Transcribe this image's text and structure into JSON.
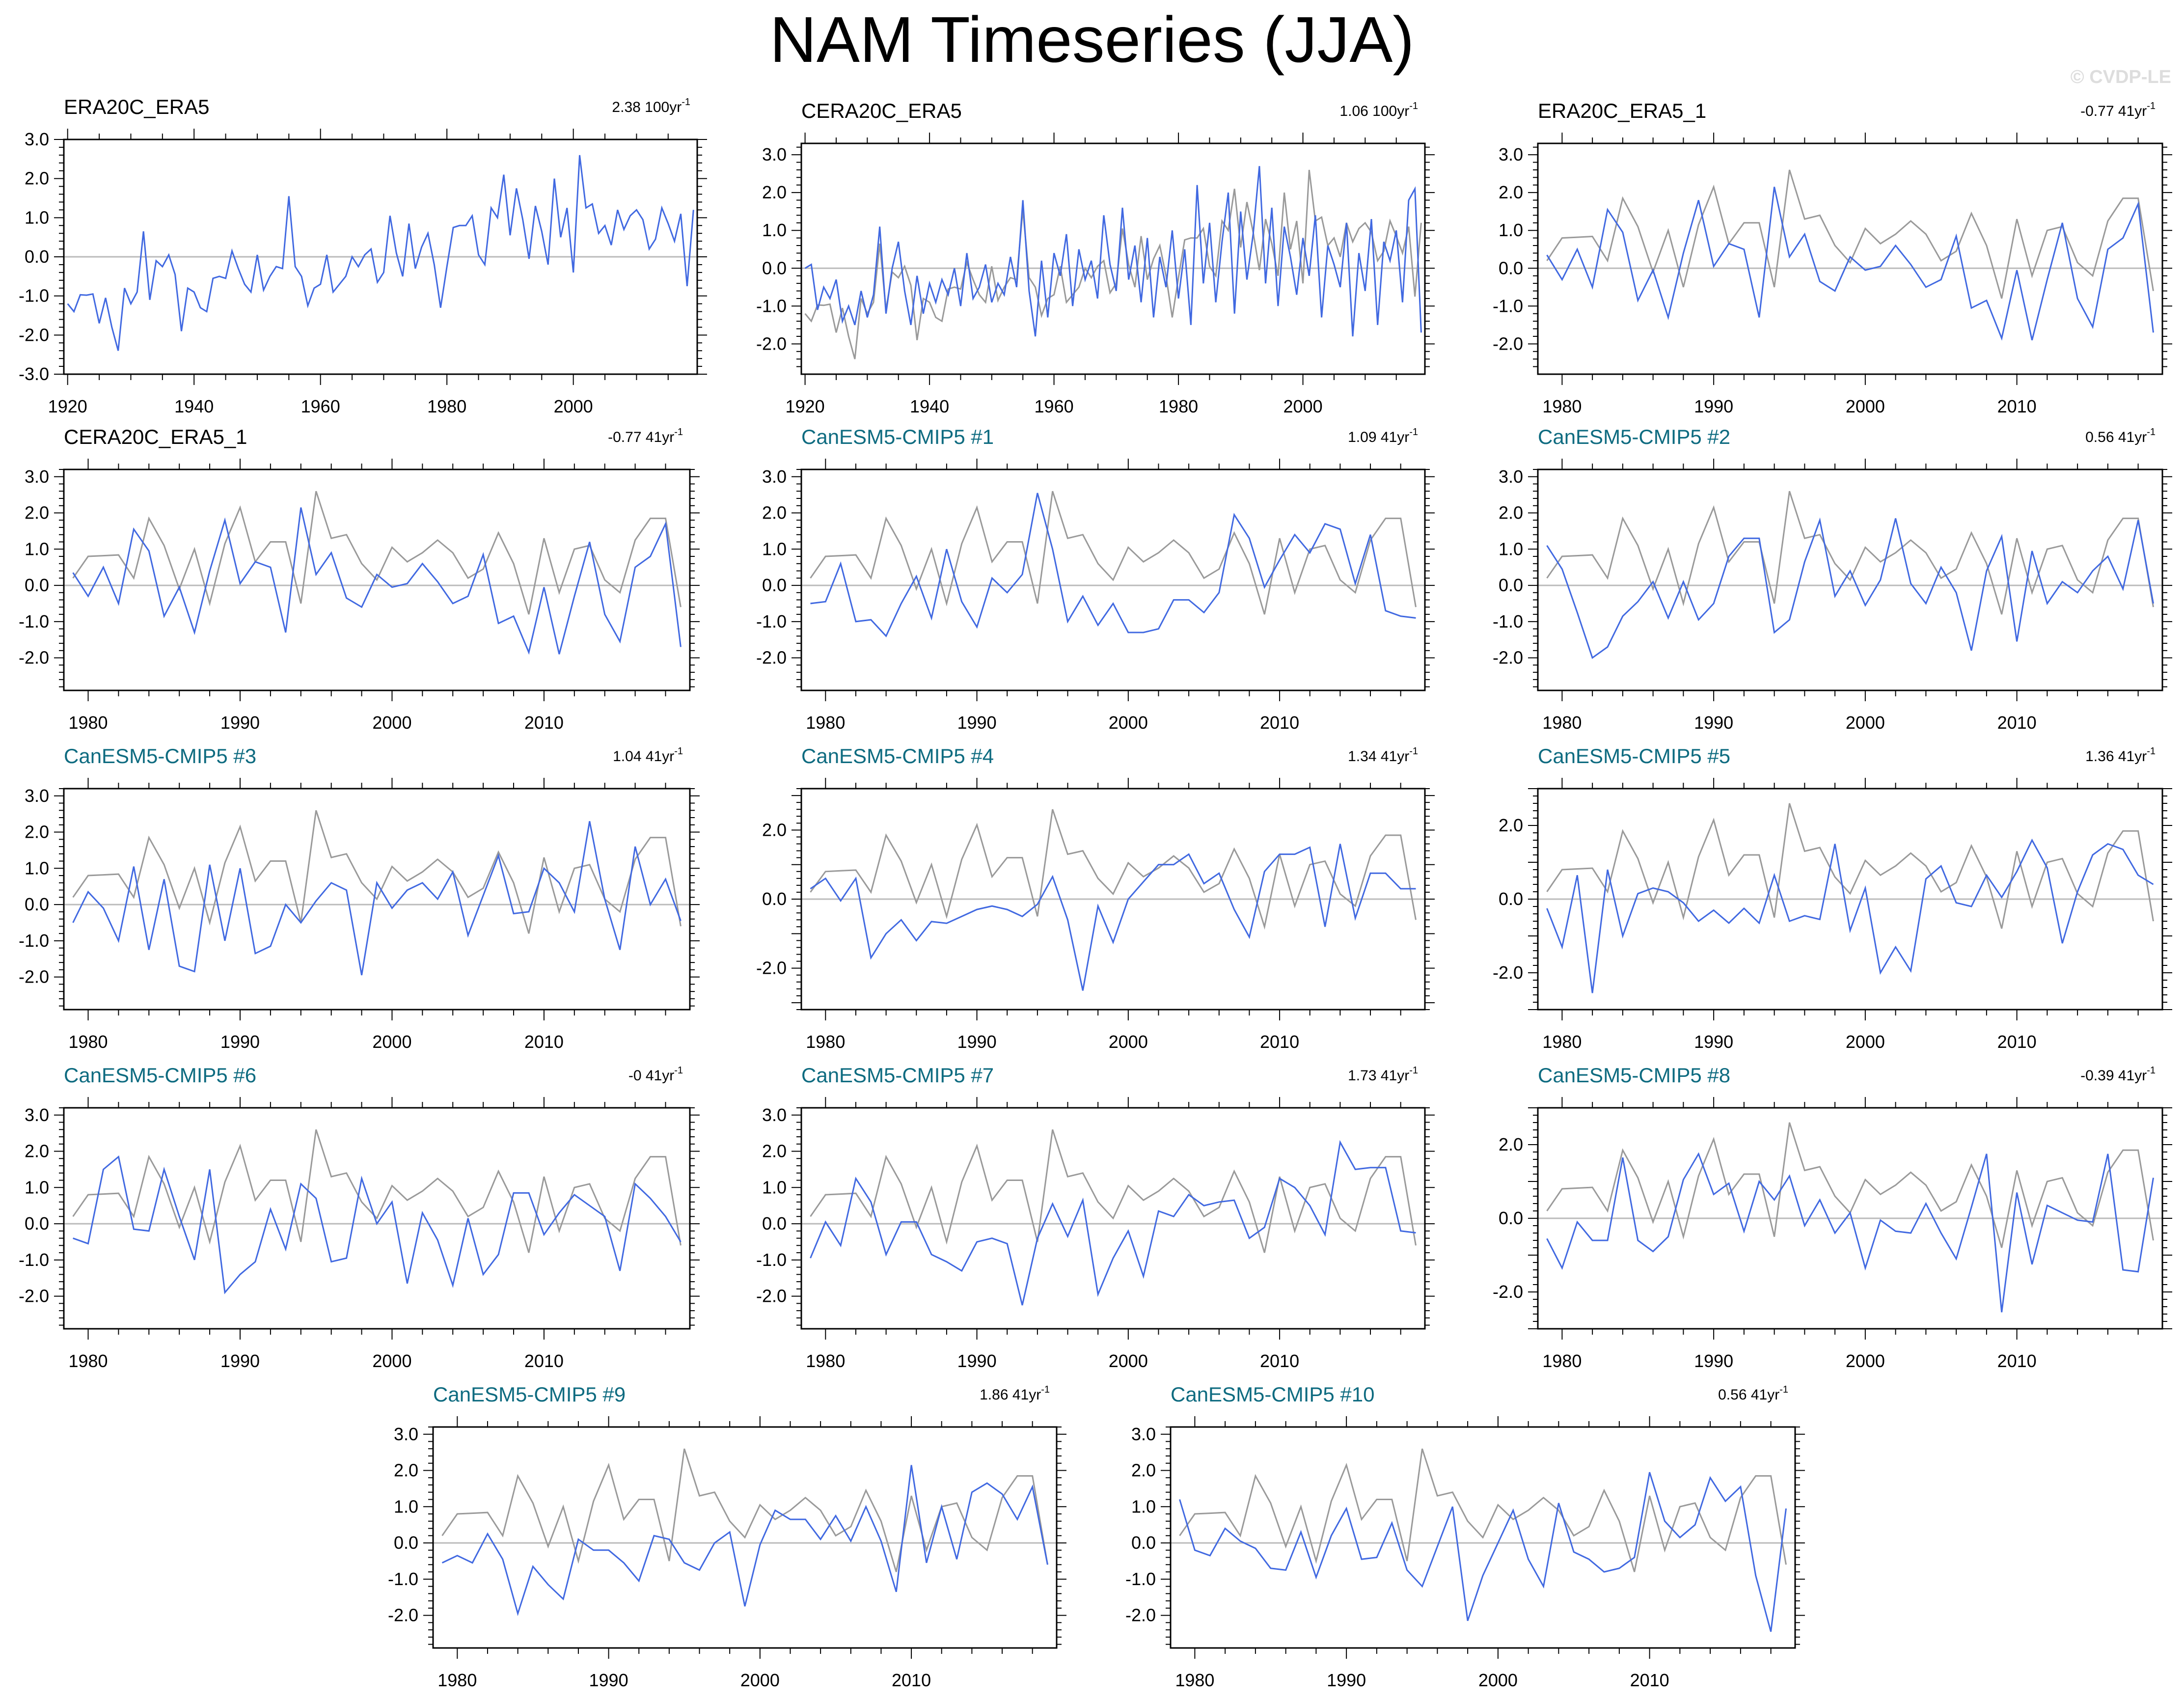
{
  "page": {
    "title": "NAM Timeseries (JJA)",
    "watermark": "© CVDP-LE"
  },
  "colors": {
    "series": "#4169e1",
    "observed": "#9a9a9a",
    "title_obs": "#000000",
    "title_model": "#0e6b80",
    "axes": "#000000",
    "zero_line": "#bbbbbb"
  },
  "chart_data": [
    {
      "id": "era20c_era5",
      "type": "line",
      "title": "ERA20C_ERA5",
      "title_kind": "obs",
      "trend": "2.38 100yr",
      "trend_sup": "-1",
      "x_start": 1920,
      "x_end": 2019,
      "xticks": [
        1920,
        1940,
        1960,
        1980,
        2000
      ],
      "ylim": [
        -3,
        3
      ],
      "yticks": [
        "3.0",
        "2.0",
        "1.0",
        "0.0",
        "-1.0",
        "-2.0",
        "-3.0"
      ],
      "show_obs": false,
      "values": [
        -1.2,
        -1.4,
        -0.97,
        -0.98,
        -0.95,
        -1.7,
        -1.05,
        -1.8,
        -2.4,
        -0.8,
        -1.2,
        -0.9,
        0.65,
        -1.1,
        -0.1,
        -0.25,
        0.05,
        -0.45,
        -1.9,
        -0.8,
        -0.9,
        -1.3,
        -1.4,
        -0.55,
        -0.5,
        -0.55,
        0.15,
        -0.3,
        -0.7,
        -0.9,
        0.05,
        -0.85,
        -0.5,
        -0.25,
        -0.3,
        1.55,
        -0.25,
        -0.5,
        -1.25,
        -0.8,
        -0.7,
        0.05,
        -0.9,
        -0.7,
        -0.5,
        0.0,
        -0.25,
        0.05,
        0.2,
        -0.65,
        -0.4,
        1.05,
        0.1,
        -0.5,
        0.85,
        -0.3,
        0.25,
        0.6,
        -0.2,
        -1.3,
        -0.25,
        0.75,
        0.8,
        0.8,
        1.05,
        0.05,
        -0.2,
        1.25,
        1.0,
        2.1,
        0.55,
        1.75,
        0.95,
        -0.05,
        1.3,
        0.65,
        -0.2,
        2.0,
        0.5,
        1.25,
        -0.4,
        2.6,
        1.25,
        1.35,
        0.6,
        0.8,
        0.3,
        1.2,
        0.7,
        1.05,
        1.2,
        0.95,
        0.2,
        0.45,
        1.25,
        0.85,
        0.4,
        1.1,
        -0.75,
        1.2
      ]
    },
    {
      "id": "cera20c_era5",
      "type": "line",
      "title": "CERA20C_ERA5",
      "title_kind": "obs",
      "trend": "1.06 100yr",
      "trend_sup": "-1",
      "x_start": 1920,
      "x_end": 2019,
      "xticks": [
        1920,
        1940,
        1960,
        1980,
        2000
      ],
      "ylim": [
        -2.8,
        3.3
      ],
      "yticks": [
        "3.0",
        "2.0",
        "1.0",
        "0.0",
        "-1.0",
        "-2.0"
      ],
      "show_obs": true,
      "obs_values": [
        -1.2,
        -1.4,
        -0.97,
        -0.98,
        -0.95,
        -1.7,
        -1.05,
        -1.8,
        -2.4,
        -0.8,
        -1.2,
        -0.9,
        0.65,
        -1.1,
        -0.1,
        -0.25,
        0.05,
        -0.45,
        -1.9,
        -0.8,
        -0.9,
        -1.3,
        -1.4,
        -0.55,
        -0.5,
        -0.55,
        0.15,
        -0.3,
        -0.7,
        -0.9,
        0.05,
        -0.85,
        -0.5,
        -0.25,
        -0.3,
        1.55,
        -0.25,
        -0.5,
        -1.25,
        -0.8,
        -0.7,
        0.05,
        -0.9,
        -0.7,
        -0.5,
        0.0,
        -0.25,
        0.05,
        0.2,
        -0.65,
        -0.4,
        1.05,
        0.1,
        -0.5,
        0.85,
        -0.3,
        0.25,
        0.6,
        -0.2,
        -1.3,
        -0.25,
        0.75,
        0.8,
        0.8,
        1.05,
        0.05,
        -0.2,
        1.25,
        1.0,
        2.1,
        0.55,
        1.75,
        0.95,
        -0.05,
        1.3,
        0.65,
        -0.2,
        2.0,
        0.5,
        1.25,
        -0.4,
        2.6,
        1.25,
        1.35,
        0.6,
        0.8,
        0.3,
        1.2,
        0.7,
        1.05,
        1.2,
        0.95,
        0.2,
        0.45,
        1.25,
        0.85,
        0.4,
        1.1,
        -0.75,
        1.2
      ],
      "values": [
        0.0,
        0.1,
        -1.1,
        -0.5,
        -0.8,
        -0.3,
        -1.4,
        -1.0,
        -1.5,
        -0.6,
        -1.3,
        -0.7,
        1.1,
        -1.2,
        0.0,
        0.7,
        -0.6,
        -1.5,
        -0.2,
        -1.2,
        -0.4,
        -0.9,
        -0.3,
        -0.7,
        0.0,
        -1.0,
        0.4,
        -0.8,
        -0.5,
        0.1,
        -0.9,
        -0.4,
        -0.7,
        0.3,
        -0.5,
        1.8,
        -0.6,
        -1.8,
        0.2,
        -1.3,
        0.4,
        -0.2,
        0.9,
        -1.0,
        0.5,
        -0.3,
        0.2,
        -0.8,
        1.4,
        0.1,
        -0.6,
        1.6,
        -0.3,
        0.6,
        -0.9,
        0.8,
        -1.3,
        0.3,
        -0.5,
        1.0,
        -0.8,
        0.5,
        -1.5,
        2.2,
        -0.4,
        1.2,
        -0.9,
        0.7,
        2.0,
        -1.2,
        1.5,
        -0.3,
        0.9,
        2.7,
        -0.4,
        1.6,
        -1.0,
        1.1,
        0.3,
        -0.7,
        0.8,
        -0.2,
        1.4,
        -1.3,
        0.6,
        0.1,
        -0.5,
        1.2,
        -1.8,
        0.4,
        -0.6,
        1.3,
        -1.5,
        0.7,
        0.2,
        1.0,
        -0.9,
        1.8,
        2.1,
        -1.7
      ]
    },
    {
      "id": "era20c_era5_1",
      "type": "line",
      "title": "ERA20C_ERA5_1",
      "title_kind": "obs",
      "trend": "-0.77 41yr",
      "trend_sup": "-1",
      "x_start": 1979,
      "x_end": 2019,
      "xticks": [
        1980,
        1990,
        2000,
        2010
      ],
      "ylim": [
        -2.8,
        3.3
      ],
      "yticks": [
        "3.0",
        "2.0",
        "1.0",
        "0.0",
        "-1.0",
        "-2.0"
      ],
      "show_obs": true,
      "values": [
        0.35,
        -0.3,
        0.5,
        -0.5,
        1.55,
        0.95,
        -0.85,
        -0.05,
        -1.3,
        0.4,
        1.8,
        0.05,
        0.65,
        0.5,
        -1.3,
        2.15,
        0.3,
        0.9,
        -0.35,
        -0.6,
        0.3,
        -0.05,
        0.05,
        0.6,
        0.1,
        -0.5,
        -0.3,
        0.85,
        -1.05,
        -0.85,
        -1.85,
        -0.05,
        -1.9,
        -0.3,
        1.2,
        -0.8,
        -1.55,
        0.5,
        0.8,
        1.7,
        -1.7
      ]
    },
    {
      "id": "cera20c_era5_1",
      "type": "line",
      "title": "CERA20C_ERA5_1",
      "title_kind": "obs",
      "trend": "-0.77 41yr",
      "trend_sup": "-1",
      "x_start": 1979,
      "x_end": 2019,
      "xticks": [
        1980,
        1990,
        2000,
        2010
      ],
      "ylim": [
        -2.9,
        3.2
      ],
      "yticks": [
        "3.0",
        "2.0",
        "1.0",
        "0.0",
        "-1.0",
        "-2.0"
      ],
      "show_obs": true,
      "values": [
        0.35,
        -0.3,
        0.5,
        -0.5,
        1.55,
        0.95,
        -0.85,
        -0.05,
        -1.3,
        0.4,
        1.8,
        0.05,
        0.65,
        0.5,
        -1.3,
        2.15,
        0.3,
        0.9,
        -0.35,
        -0.6,
        0.3,
        -0.05,
        0.05,
        0.6,
        0.1,
        -0.5,
        -0.3,
        0.85,
        -1.05,
        -0.85,
        -1.85,
        -0.05,
        -1.9,
        -0.3,
        1.2,
        -0.8,
        -1.55,
        0.5,
        0.8,
        1.7,
        -1.7
      ]
    },
    {
      "id": "member_1",
      "type": "line",
      "title": "CanESM5-CMIP5 #1",
      "title_kind": "model",
      "trend": "1.09 41yr",
      "trend_sup": "-1",
      "x_start": 1979,
      "x_end": 2019,
      "xticks": [
        1980,
        1990,
        2000,
        2010
      ],
      "ylim": [
        -2.9,
        3.2
      ],
      "yticks": [
        "3.0",
        "2.0",
        "1.0",
        "0.0",
        "-1.0",
        "-2.0"
      ],
      "show_obs": true,
      "values": [
        -0.5,
        -0.45,
        0.6,
        -1.0,
        -0.95,
        -1.4,
        -0.5,
        0.25,
        -0.9,
        1.0,
        -0.45,
        -1.15,
        0.2,
        -0.2,
        0.3,
        2.55,
        1.0,
        -1.0,
        -0.3,
        -1.1,
        -0.5,
        -1.3,
        -1.3,
        -1.2,
        -0.4,
        -0.4,
        -0.75,
        -0.2,
        1.95,
        1.3,
        -0.05,
        0.7,
        1.4,
        0.9,
        1.7,
        1.55,
        0.05,
        1.4,
        -0.7,
        -0.85,
        -0.9
      ]
    },
    {
      "id": "member_2",
      "type": "line",
      "title": "CanESM5-CMIP5 #2",
      "title_kind": "model",
      "trend": "0.56 41yr",
      "trend_sup": "-1",
      "x_start": 1979,
      "x_end": 2019,
      "xticks": [
        1980,
        1990,
        2000,
        2010
      ],
      "ylim": [
        -2.9,
        3.2
      ],
      "yticks": [
        "3.0",
        "2.0",
        "1.0",
        "0.0",
        "-1.0",
        "-2.0"
      ],
      "show_obs": true,
      "values": [
        1.1,
        0.45,
        -0.75,
        -2.0,
        -1.7,
        -0.85,
        -0.45,
        0.1,
        -0.9,
        0.1,
        -0.95,
        -0.5,
        0.8,
        1.3,
        1.3,
        -1.3,
        -0.95,
        0.65,
        1.8,
        -0.3,
        0.4,
        -0.55,
        0.15,
        1.85,
        0.05,
        -0.5,
        0.5,
        -0.2,
        -1.8,
        0.4,
        1.35,
        -1.55,
        0.95,
        -0.5,
        0.1,
        -0.2,
        0.4,
        0.8,
        -0.1,
        1.8,
        -0.5
      ]
    },
    {
      "id": "member_3",
      "type": "line",
      "title": "CanESM5-CMIP5 #3",
      "title_kind": "model",
      "trend": "1.04 41yr",
      "trend_sup": "-1",
      "x_start": 1979,
      "x_end": 2019,
      "xticks": [
        1980,
        1990,
        2000,
        2010
      ],
      "ylim": [
        -2.9,
        3.2
      ],
      "yticks": [
        "3.0",
        "2.0",
        "1.0",
        "0.0",
        "-1.0",
        "-2.0"
      ],
      "show_obs": true,
      "values": [
        -0.5,
        0.35,
        -0.1,
        -1.0,
        1.05,
        -1.25,
        0.7,
        -1.7,
        -1.85,
        1.1,
        -1.0,
        1.0,
        -1.35,
        -1.15,
        0.0,
        -0.5,
        0.1,
        0.6,
        0.4,
        -1.95,
        0.6,
        -0.1,
        0.4,
        0.6,
        0.15,
        0.9,
        -0.85,
        0.25,
        1.35,
        -0.25,
        -0.2,
        1.0,
        0.6,
        -0.2,
        2.3,
        0.15,
        -1.25,
        1.6,
        0.0,
        0.7,
        -0.45
      ]
    },
    {
      "id": "member_4",
      "type": "line",
      "title": "CanESM5-CMIP5 #4",
      "title_kind": "model",
      "trend": "1.34 41yr",
      "trend_sup": "-1",
      "x_start": 1979,
      "x_end": 2019,
      "xticks": [
        1980,
        1990,
        2000,
        2010
      ],
      "ylim": [
        -3.2,
        3.2
      ],
      "yticks": [
        "2.0",
        "0.0",
        "-2.0"
      ],
      "show_obs": true,
      "values": [
        0.3,
        0.6,
        -0.05,
        0.6,
        -1.7,
        -1.0,
        -0.6,
        -1.2,
        -0.65,
        -0.7,
        -0.5,
        -0.3,
        -0.2,
        -0.3,
        -0.5,
        -0.15,
        0.65,
        -0.6,
        -2.65,
        -0.2,
        -1.25,
        0.0,
        0.5,
        1.0,
        1.0,
        1.3,
        0.45,
        0.75,
        -0.3,
        -1.1,
        0.8,
        1.3,
        1.3,
        1.5,
        -0.8,
        1.6,
        -0.55,
        0.75,
        0.75,
        0.3,
        0.3
      ]
    },
    {
      "id": "member_5",
      "type": "line",
      "title": "CanESM5-CMIP5 #5",
      "title_kind": "model",
      "trend": "1.36 41yr",
      "trend_sup": "-1",
      "x_start": 1979,
      "x_end": 2019,
      "xticks": [
        1980,
        1990,
        2000,
        2010
      ],
      "ylim": [
        -3.0,
        3.0
      ],
      "yticks": [
        "2.0",
        "0.0",
        "-2.0"
      ],
      "show_obs": true,
      "values": [
        -0.25,
        -1.3,
        0.65,
        -2.55,
        0.8,
        -1.0,
        0.15,
        0.3,
        0.2,
        -0.1,
        -0.6,
        -0.3,
        -0.65,
        -0.25,
        -0.65,
        0.65,
        -0.6,
        -0.45,
        -0.55,
        1.5,
        -0.85,
        0.3,
        -2.0,
        -1.3,
        -1.95,
        0.55,
        0.9,
        -0.1,
        -0.2,
        0.65,
        0.05,
        0.75,
        1.6,
        0.85,
        -1.2,
        0.2,
        1.2,
        1.5,
        1.35,
        0.65,
        0.4
      ]
    },
    {
      "id": "member_6",
      "type": "line",
      "title": "CanESM5-CMIP5 #6",
      "title_kind": "model",
      "trend": "-0 41yr",
      "trend_sup": "-1",
      "x_start": 1979,
      "x_end": 2019,
      "xticks": [
        1980,
        1990,
        2000,
        2010
      ],
      "ylim": [
        -2.9,
        3.2
      ],
      "yticks": [
        "3.0",
        "2.0",
        "1.0",
        "0.0",
        "-1.0",
        "-2.0"
      ],
      "show_obs": true,
      "values": [
        -0.4,
        -0.55,
        1.5,
        1.85,
        -0.15,
        -0.2,
        1.5,
        0.2,
        -1.0,
        1.5,
        -1.9,
        -1.4,
        -1.05,
        0.4,
        -0.7,
        1.1,
        0.7,
        -1.05,
        -0.95,
        1.25,
        0.0,
        0.6,
        -1.65,
        0.3,
        -0.45,
        -1.7,
        0.15,
        -1.4,
        -0.85,
        0.85,
        0.85,
        -0.3,
        0.3,
        0.8,
        0.5,
        0.2,
        -1.3,
        1.1,
        0.7,
        0.2,
        -0.5
      ]
    },
    {
      "id": "member_7",
      "type": "line",
      "title": "CanESM5-CMIP5 #7",
      "title_kind": "model",
      "trend": "1.73 41yr",
      "trend_sup": "-1",
      "x_start": 1979,
      "x_end": 2019,
      "xticks": [
        1980,
        1990,
        2000,
        2010
      ],
      "ylim": [
        -2.9,
        3.2
      ],
      "yticks": [
        "3.0",
        "2.0",
        "1.0",
        "0.0",
        "-1.0",
        "-2.0"
      ],
      "show_obs": true,
      "values": [
        -0.95,
        0.05,
        -0.6,
        1.25,
        0.6,
        -0.85,
        0.05,
        0.05,
        -0.85,
        -1.05,
        -1.3,
        -0.5,
        -0.4,
        -0.55,
        -2.25,
        -0.4,
        0.55,
        -0.35,
        0.65,
        -1.95,
        -0.95,
        -0.2,
        -1.45,
        0.35,
        0.2,
        0.8,
        0.5,
        0.6,
        0.65,
        -0.4,
        -0.1,
        1.25,
        1.0,
        0.5,
        -0.3,
        2.25,
        1.5,
        1.55,
        1.55,
        -0.2,
        -0.25
      ]
    },
    {
      "id": "member_8",
      "type": "line",
      "title": "CanESM5-CMIP5 #8",
      "title_kind": "model",
      "trend": "-0.39 41yr",
      "trend_sup": "-1",
      "x_start": 1979,
      "x_end": 2019,
      "xticks": [
        1980,
        1990,
        2000,
        2010
      ],
      "ylim": [
        -3.0,
        3.0
      ],
      "yticks": [
        "2.0",
        "0.0",
        "-2.0"
      ],
      "show_obs": true,
      "values": [
        -0.55,
        -1.35,
        -0.1,
        -0.6,
        -0.6,
        1.65,
        -0.6,
        -0.9,
        -0.5,
        1.05,
        1.75,
        0.65,
        0.95,
        -0.35,
        1.0,
        0.5,
        1.15,
        -0.2,
        0.5,
        -0.4,
        0.15,
        -1.35,
        -0.05,
        -0.35,
        -0.4,
        0.4,
        -0.4,
        -1.1,
        0.3,
        1.75,
        -2.55,
        0.7,
        -1.25,
        0.35,
        0.15,
        -0.05,
        -0.1,
        1.75,
        -1.4,
        -1.45,
        1.1
      ]
    },
    {
      "id": "member_9",
      "type": "line",
      "title": "CanESM5-CMIP5 #9",
      "title_kind": "model",
      "trend": "1.86 41yr",
      "trend_sup": "-1",
      "x_start": 1979,
      "x_end": 2019,
      "xticks": [
        1980,
        1990,
        2000,
        2010
      ],
      "ylim": [
        -2.9,
        3.2
      ],
      "yticks": [
        "3.0",
        "2.0",
        "1.0",
        "0.0",
        "-1.0",
        "-2.0"
      ],
      "show_obs": true,
      "values": [
        -0.55,
        -0.35,
        -0.55,
        0.25,
        -0.45,
        -1.95,
        -0.65,
        -1.15,
        -1.55,
        0.1,
        -0.2,
        -0.2,
        -0.55,
        -1.05,
        0.2,
        0.1,
        -0.55,
        -0.75,
        0.0,
        0.3,
        -1.75,
        -0.05,
        0.9,
        0.65,
        0.65,
        0.1,
        0.75,
        0.05,
        1.0,
        0.05,
        -1.35,
        2.15,
        -0.55,
        1.0,
        -0.45,
        1.4,
        1.65,
        1.35,
        0.65,
        1.55,
        -0.6
      ]
    },
    {
      "id": "member_10",
      "type": "line",
      "title": "CanESM5-CMIP5 #10",
      "title_kind": "model",
      "trend": "0.56 41yr",
      "trend_sup": "-1",
      "x_start": 1979,
      "x_end": 2019,
      "xticks": [
        1980,
        1990,
        2000,
        2010
      ],
      "ylim": [
        -2.9,
        3.2
      ],
      "yticks": [
        "3.0",
        "2.0",
        "1.0",
        "0.0",
        "-1.0",
        "-2.0"
      ],
      "show_obs": true,
      "values": [
        1.2,
        -0.2,
        -0.35,
        0.4,
        0.05,
        -0.15,
        -0.7,
        -0.75,
        0.3,
        -0.95,
        0.2,
        0.95,
        -0.45,
        -0.4,
        0.55,
        -0.75,
        -1.2,
        -0.1,
        1.0,
        -2.15,
        -0.9,
        0.0,
        0.9,
        -0.45,
        -1.2,
        1.1,
        -0.25,
        -0.45,
        -0.8,
        -0.7,
        -0.4,
        1.95,
        0.6,
        0.15,
        0.5,
        1.8,
        1.15,
        1.55,
        -0.9,
        -2.45,
        0.95
      ]
    }
  ]
}
